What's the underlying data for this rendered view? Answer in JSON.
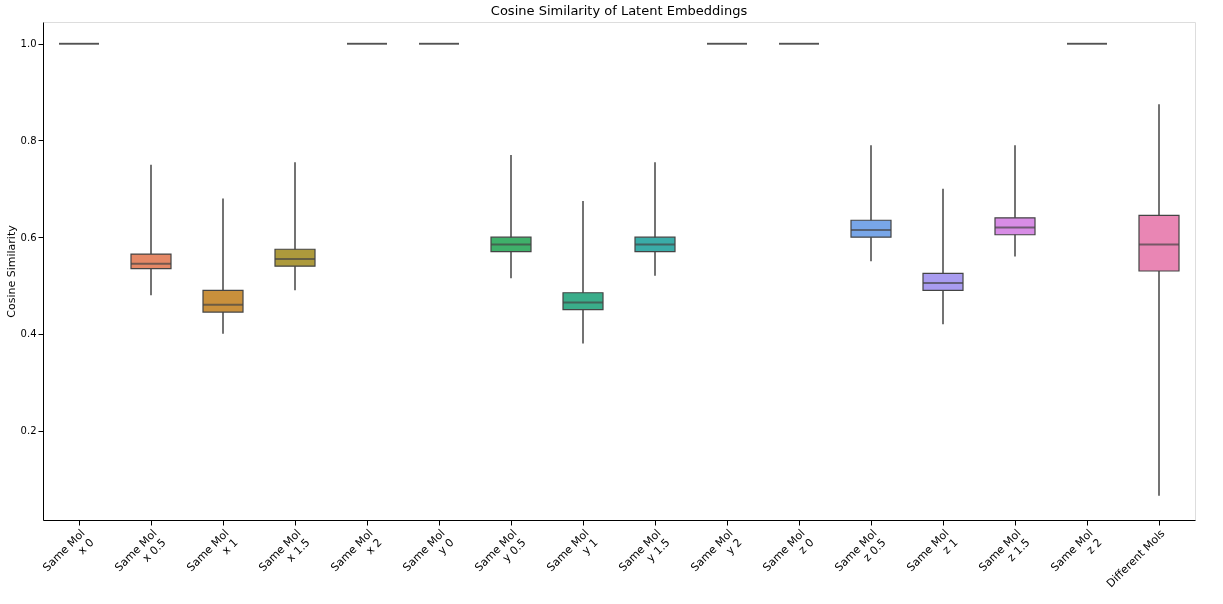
{
  "chart_data": {
    "type": "box",
    "title": "Cosine Similarity of Latent Embeddings",
    "ylabel": "Cosine Similarity",
    "categories": [
      "Same Mol\nx 0",
      "Same Mol\nx 0.5",
      "Same Mol\nx 1",
      "Same Mol\nx 1.5",
      "Same Mol\nx 2",
      "Same Mol\ny 0",
      "Same Mol\ny 0.5",
      "Same Mol\ny 1",
      "Same Mol\ny 1.5",
      "Same Mol\ny 2",
      "Same Mol\nz 0",
      "Same Mol\nz 0.5",
      "Same Mol\nz 1",
      "Same Mol\nz 1.5",
      "Same Mol\nz 2",
      "Different Mols"
    ],
    "colors": [
      "#444444",
      "#e58866",
      "#c9903c",
      "#ad9a3c",
      "#444444",
      "#444444",
      "#3fb06a",
      "#3aad8a",
      "#3aaca8",
      "#444444",
      "#444444",
      "#78a6e8",
      "#a99cf0",
      "#d88de6",
      "#444444",
      "#e986b4"
    ],
    "boxes": [
      {
        "low": 1.0,
        "q1": 1.0,
        "median": 1.0,
        "q3": 1.0,
        "high": 1.0
      },
      {
        "low": 0.48,
        "q1": 0.535,
        "median": 0.545,
        "q3": 0.565,
        "high": 0.75
      },
      {
        "low": 0.4,
        "q1": 0.445,
        "median": 0.46,
        "q3": 0.49,
        "high": 0.68
      },
      {
        "low": 0.49,
        "q1": 0.54,
        "median": 0.555,
        "q3": 0.575,
        "high": 0.755
      },
      {
        "low": 1.0,
        "q1": 1.0,
        "median": 1.0,
        "q3": 1.0,
        "high": 1.0
      },
      {
        "low": 1.0,
        "q1": 1.0,
        "median": 1.0,
        "q3": 1.0,
        "high": 1.0
      },
      {
        "low": 0.515,
        "q1": 0.57,
        "median": 0.585,
        "q3": 0.6,
        "high": 0.77
      },
      {
        "low": 0.38,
        "q1": 0.45,
        "median": 0.465,
        "q3": 0.485,
        "high": 0.675
      },
      {
        "low": 0.52,
        "q1": 0.57,
        "median": 0.585,
        "q3": 0.6,
        "high": 0.755
      },
      {
        "low": 1.0,
        "q1": 1.0,
        "median": 1.0,
        "q3": 1.0,
        "high": 1.0
      },
      {
        "low": 1.0,
        "q1": 1.0,
        "median": 1.0,
        "q3": 1.0,
        "high": 1.0
      },
      {
        "low": 0.55,
        "q1": 0.6,
        "median": 0.615,
        "q3": 0.635,
        "high": 0.79
      },
      {
        "low": 0.42,
        "q1": 0.49,
        "median": 0.505,
        "q3": 0.525,
        "high": 0.7
      },
      {
        "low": 0.56,
        "q1": 0.605,
        "median": 0.62,
        "q3": 0.64,
        "high": 0.79
      },
      {
        "low": 1.0,
        "q1": 1.0,
        "median": 1.0,
        "q3": 1.0,
        "high": 1.0
      },
      {
        "low": 0.065,
        "q1": 0.53,
        "median": 0.585,
        "q3": 0.645,
        "high": 0.875
      }
    ],
    "ylim": [
      0.015,
      1.045
    ],
    "yticks": [
      0.2,
      0.4,
      0.6,
      0.8,
      {
        "value": 1.0,
        "label": "1.0"
      }
    ],
    "grid": false
  }
}
